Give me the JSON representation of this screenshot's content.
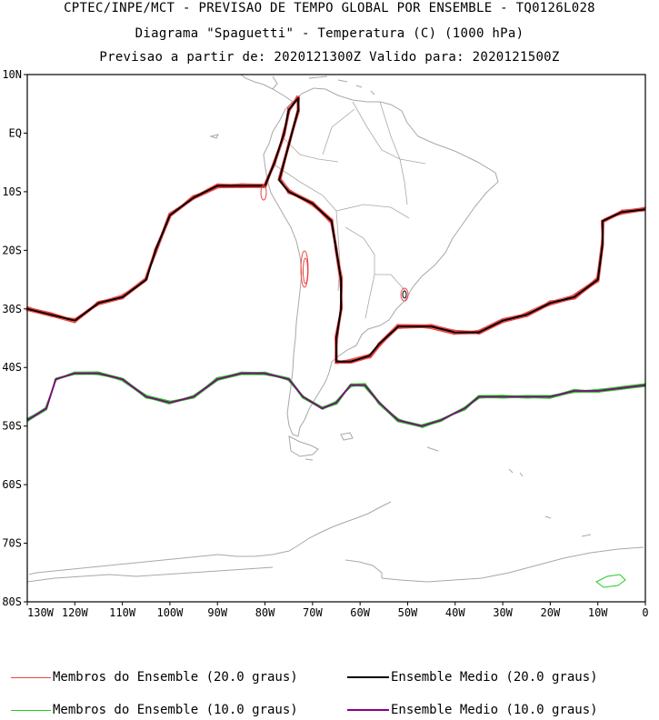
{
  "header": {
    "line1": "CPTEC/INPE/MCT - PREVISAO DE TEMPO GLOBAL POR ENSEMBLE - TQ0126L028",
    "line2": "Diagrama \"Spaguetti\" - Temperatura (C) (1000 hPa)",
    "line3": "Previsao a partir de: 2020121300Z  Valido para: 2020121500Z"
  },
  "colors": {
    "member_20": "#ee4444",
    "mean_20": "#000000",
    "member_10": "#22cc22",
    "mean_10": "#880088",
    "coast": "#a8a8a8"
  },
  "axes": {
    "lat_labels": [
      "10N",
      "EQ",
      "10S",
      "20S",
      "30S",
      "40S",
      "50S",
      "60S",
      "70S",
      "80S"
    ],
    "lon_labels": [
      "130W",
      "120W",
      "110W",
      "100W",
      "90W",
      "80W",
      "70W",
      "60W",
      "50W",
      "40W",
      "30W",
      "20W",
      "10W",
      "0"
    ]
  },
  "chart_data": {
    "type": "contour-map",
    "title": "Diagrama \"Spaguetti\" - Temperatura (C) (1000 hPa)",
    "lon_range": [
      -130,
      0
    ],
    "lat_range": [
      -80,
      10
    ],
    "ensemble_mean_20C": [
      [
        -130,
        -30
      ],
      [
        -125,
        -31
      ],
      [
        -120,
        -32
      ],
      [
        -115,
        -29
      ],
      [
        -110,
        -28
      ],
      [
        -105,
        -25
      ],
      [
        -103,
        -20
      ],
      [
        -100,
        -14
      ],
      [
        -95,
        -11
      ],
      [
        -90,
        -9
      ],
      [
        -85,
        -9
      ],
      [
        -80,
        -9
      ],
      [
        -78,
        -5
      ],
      [
        -76,
        0
      ],
      [
        -75,
        4
      ],
      [
        -73,
        6
      ],
      [
        -73,
        4
      ],
      [
        -75,
        -2
      ],
      [
        -77,
        -8
      ],
      [
        -75,
        -10
      ],
      [
        -70,
        -12
      ],
      [
        -66,
        -15
      ],
      [
        -65,
        -20
      ],
      [
        -64,
        -25
      ],
      [
        -64,
        -30
      ],
      [
        -65,
        -35
      ],
      [
        -65,
        -39
      ],
      [
        -62,
        -39
      ],
      [
        -58,
        -38
      ],
      [
        -56,
        -36
      ],
      [
        -52,
        -33
      ],
      [
        -45,
        -33
      ],
      [
        -40,
        -34
      ],
      [
        -35,
        -34
      ],
      [
        -30,
        -32
      ],
      [
        -25,
        -31
      ],
      [
        -20,
        -29
      ],
      [
        -15,
        -28
      ],
      [
        -10,
        -25
      ],
      [
        -9,
        -19
      ],
      [
        -9,
        -15
      ],
      [
        -5,
        -13.5
      ],
      [
        0,
        -13
      ]
    ],
    "ensemble_mean_10C": [
      [
        -130,
        -49
      ],
      [
        -126,
        -47
      ],
      [
        -124,
        -42
      ],
      [
        -120,
        -41
      ],
      [
        -115,
        -41
      ],
      [
        -110,
        -42
      ],
      [
        -105,
        -45
      ],
      [
        -100,
        -46
      ],
      [
        -95,
        -45
      ],
      [
        -90,
        -42
      ],
      [
        -85,
        -41
      ],
      [
        -80,
        -41
      ],
      [
        -75,
        -42
      ],
      [
        -72,
        -45
      ],
      [
        -68,
        -47
      ],
      [
        -65,
        -46
      ],
      [
        -62,
        -43
      ],
      [
        -59,
        -43
      ],
      [
        -56,
        -46
      ],
      [
        -52,
        -49
      ],
      [
        -47,
        -50
      ],
      [
        -43,
        -49
      ],
      [
        -38,
        -47
      ],
      [
        -35,
        -45
      ],
      [
        -30,
        -45
      ],
      [
        -25,
        -45
      ],
      [
        -20,
        -45
      ],
      [
        -15,
        -44
      ],
      [
        -10,
        -44
      ],
      [
        -5,
        -43.5
      ],
      [
        0,
        -43
      ]
    ],
    "members_20C_count": 15,
    "members_10C_count": 15
  },
  "legend": {
    "items": [
      {
        "label": "Membros do Ensemble (20.0 graus)"
      },
      {
        "label": "Ensemble Medio (20.0 graus)"
      },
      {
        "label": "Membros do Ensemble (10.0 graus)"
      },
      {
        "label": "Ensemble Medio (10.0 graus)"
      }
    ]
  }
}
